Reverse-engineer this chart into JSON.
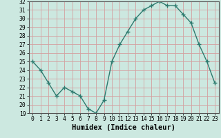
{
  "x": [
    0,
    1,
    2,
    3,
    4,
    5,
    6,
    7,
    8,
    9,
    10,
    11,
    12,
    13,
    14,
    15,
    16,
    17,
    18,
    19,
    20,
    21,
    22,
    23
  ],
  "y": [
    25.0,
    24.0,
    22.5,
    21.0,
    22.0,
    21.5,
    21.0,
    19.5,
    19.0,
    20.5,
    25.0,
    27.0,
    28.5,
    30.0,
    31.0,
    31.5,
    32.0,
    31.5,
    31.5,
    30.5,
    29.5,
    27.0,
    25.0,
    22.5
  ],
  "ylim": [
    19,
    32
  ],
  "xlim": [
    -0.5,
    23.5
  ],
  "yticks": [
    19,
    20,
    21,
    22,
    23,
    24,
    25,
    26,
    27,
    28,
    29,
    30,
    31,
    32
  ],
  "xticks": [
    0,
    1,
    2,
    3,
    4,
    5,
    6,
    7,
    8,
    9,
    10,
    11,
    12,
    13,
    14,
    15,
    16,
    17,
    18,
    19,
    20,
    21,
    22,
    23
  ],
  "xlabel": "Humidex (Indice chaleur)",
  "line_color": "#2d7a6e",
  "marker": "+",
  "marker_size": 4,
  "marker_color": "#2d7a6e",
  "bg_color": "#cce8e0",
  "grid_color": "#d4a0a0",
  "tick_label_fontsize": 5.8,
  "xlabel_fontsize": 7.5,
  "linewidth": 1.0
}
